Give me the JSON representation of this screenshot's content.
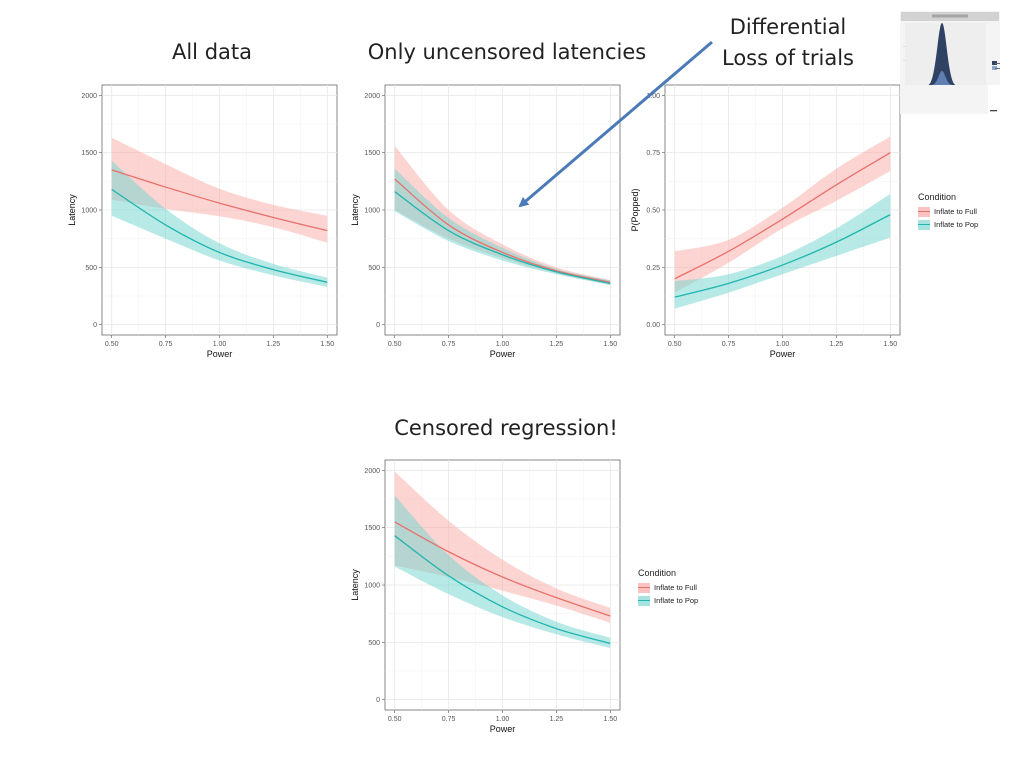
{
  "titles": {
    "all_data": "All data",
    "uncensored": "Only uncensored latencies",
    "censored": "Censored regression!",
    "differential_line1": "Differential",
    "differential_line2": "Loss of trials"
  },
  "legend": {
    "title": "Condition",
    "items": [
      {
        "label": "Inflate to Full",
        "line": "#e8706b",
        "fill": "#f8c3c0"
      },
      {
        "label": "Inflate to Pop",
        "line": "#1fb5ad",
        "fill": "#a6e2de"
      }
    ]
  },
  "colors": {
    "full_line": "#e8706b",
    "full_band": "#f9a9a6",
    "pop_line": "#1fb5ad",
    "pop_band": "#6fd3cd",
    "arrow": "#4a7ab8",
    "grid": "#e7e7e7"
  },
  "chart_data": [
    {
      "id": "all-data",
      "type": "line",
      "title": "All data",
      "xlabel": "Power",
      "ylabel": "Latency",
      "xlim": [
        0.5,
        1.5
      ],
      "ylim": [
        0,
        2000
      ],
      "xticks": [
        "0.50",
        "0.75",
        "1.00",
        "1.25",
        "1.50"
      ],
      "yticks": [
        "0",
        "500",
        "1000",
        "1500",
        "2000"
      ],
      "x": [
        0.5,
        0.75,
        1.0,
        1.25,
        1.5
      ],
      "series": [
        {
          "name": "Inflate to Full",
          "values": [
            1350,
            1200,
            1060,
            935,
            820
          ],
          "lower": [
            1090,
            1010,
            945,
            850,
            715
          ],
          "upper": [
            1630,
            1400,
            1185,
            1045,
            950
          ]
        },
        {
          "name": "Inflate to Pop",
          "values": [
            1180,
            870,
            630,
            480,
            370
          ],
          "lower": [
            950,
            750,
            560,
            430,
            330
          ],
          "upper": [
            1430,
            1010,
            710,
            530,
            410
          ]
        }
      ]
    },
    {
      "id": "uncensored",
      "type": "line",
      "title": "Only uncensored latencies",
      "xlabel": "Power",
      "ylabel": "Latency",
      "xlim": [
        0.5,
        1.5
      ],
      "ylim": [
        0,
        2000
      ],
      "xticks": [
        "0.50",
        "0.75",
        "1.00",
        "1.25",
        "1.50"
      ],
      "yticks": [
        "0",
        "500",
        "1000",
        "1500",
        "2000"
      ],
      "x": [
        0.5,
        0.75,
        1.0,
        1.25,
        1.5
      ],
      "series": [
        {
          "name": "Inflate to Full",
          "values": [
            1270,
            870,
            630,
            470,
            370
          ],
          "lower": [
            1000,
            750,
            580,
            450,
            350
          ],
          "upper": [
            1560,
            1000,
            700,
            500,
            390
          ]
        },
        {
          "name": "Inflate to Pop",
          "values": [
            1160,
            820,
            610,
            460,
            360
          ],
          "lower": [
            990,
            730,
            560,
            440,
            345
          ],
          "upper": [
            1360,
            930,
            670,
            485,
            385
          ]
        }
      ]
    },
    {
      "id": "popped",
      "type": "line",
      "title": "Differential Loss of trials",
      "xlabel": "Power",
      "ylabel": "P(Popped)",
      "xlim": [
        0.5,
        1.5
      ],
      "ylim": [
        0,
        1
      ],
      "xticks": [
        "0.50",
        "0.75",
        "1.00",
        "1.25",
        "1.50"
      ],
      "yticks": [
        "0.00",
        "0.25",
        "0.50",
        "0.75",
        "1.00"
      ],
      "x": [
        0.5,
        0.75,
        1.0,
        1.25,
        1.5
      ],
      "series": [
        {
          "name": "Inflate to Full",
          "values": [
            0.2,
            0.32,
            0.46,
            0.61,
            0.75
          ],
          "lower": [
            0.14,
            0.27,
            0.42,
            0.54,
            0.67
          ],
          "upper": [
            0.32,
            0.37,
            0.51,
            0.68,
            0.82
          ]
        },
        {
          "name": "Inflate to Pop",
          "values": [
            0.12,
            0.18,
            0.26,
            0.36,
            0.48
          ],
          "lower": [
            0.07,
            0.14,
            0.22,
            0.3,
            0.38
          ],
          "upper": [
            0.19,
            0.22,
            0.3,
            0.42,
            0.57
          ]
        }
      ]
    },
    {
      "id": "censored",
      "type": "line",
      "title": "Censored regression!",
      "xlabel": "Power",
      "ylabel": "Latency",
      "xlim": [
        0.5,
        1.5
      ],
      "ylim": [
        0,
        2000
      ],
      "xticks": [
        "0.50",
        "0.75",
        "1.00",
        "1.25",
        "1.50"
      ],
      "yticks": [
        "0",
        "500",
        "1000",
        "1500",
        "2000"
      ],
      "x": [
        0.5,
        0.75,
        1.0,
        1.25,
        1.5
      ],
      "series": [
        {
          "name": "Inflate to Full",
          "values": [
            1550,
            1290,
            1070,
            890,
            730
          ],
          "lower": [
            1170,
            1070,
            950,
            820,
            670
          ],
          "upper": [
            1990,
            1560,
            1220,
            970,
            800
          ]
        },
        {
          "name": "Inflate to Pop",
          "values": [
            1430,
            1080,
            810,
            620,
            490
          ],
          "lower": [
            1160,
            920,
            720,
            570,
            450
          ],
          "upper": [
            1780,
            1260,
            910,
            680,
            540
          ]
        }
      ]
    }
  ]
}
